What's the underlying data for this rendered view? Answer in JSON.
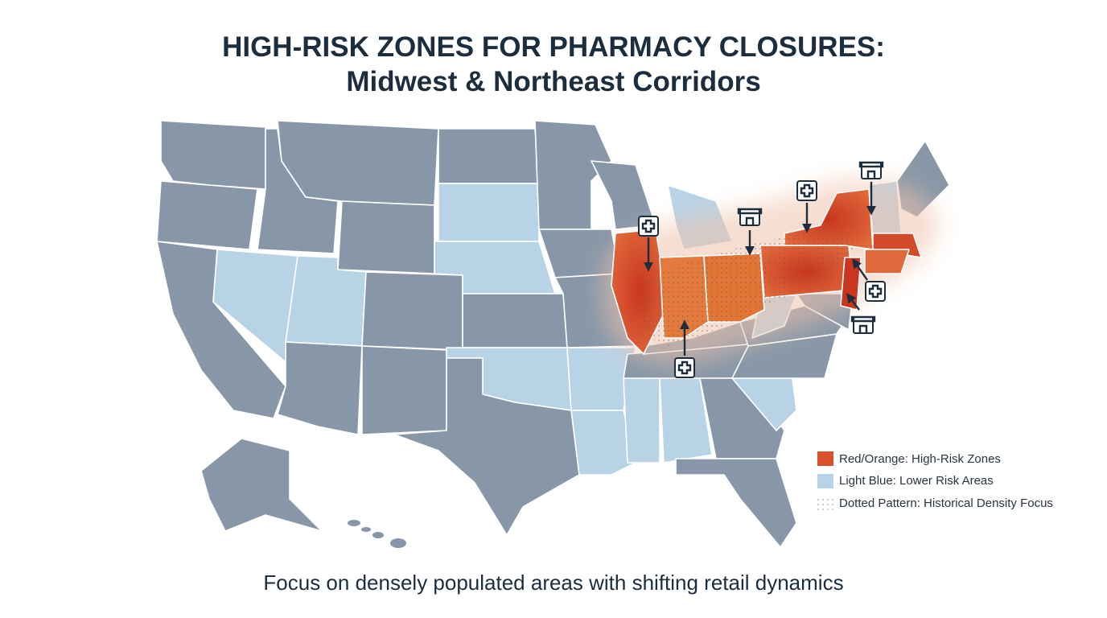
{
  "header": {
    "title_line1": "HIGH-RISK ZONES FOR PHARMACY CLOSURES:",
    "title_line2": "Midwest & Northeast Corridors"
  },
  "legend": {
    "items": [
      {
        "label": "Red/Orange: High-Risk Zones"
      },
      {
        "label": "Light Blue: Lower Risk Areas"
      },
      {
        "label": "Dotted Pattern: Historical Density Focus"
      }
    ]
  },
  "caption": "Focus on densely populated areas with shifting retail dynamics"
}
